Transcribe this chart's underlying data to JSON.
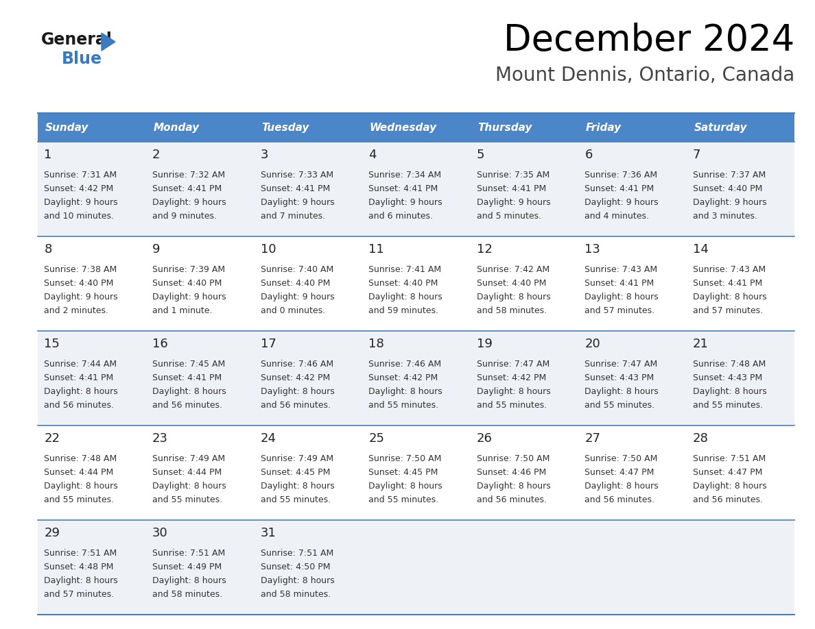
{
  "title": "December 2024",
  "subtitle": "Mount Dennis, Ontario, Canada",
  "days_of_week": [
    "Sunday",
    "Monday",
    "Tuesday",
    "Wednesday",
    "Thursday",
    "Friday",
    "Saturday"
  ],
  "header_bg": "#4a86c8",
  "header_text": "#ffffff",
  "row_bg_light": "#eef2f7",
  "row_bg_white": "#ffffff",
  "border_color": "#4a7fb5",
  "day_num_color": "#222222",
  "cell_text_color": "#333333",
  "calendar_data": [
    [
      {
        "day": 1,
        "sunrise": "7:31 AM",
        "sunset": "4:42 PM",
        "daylight_h": "9 hours",
        "daylight_m": "and 10 minutes."
      },
      {
        "day": 2,
        "sunrise": "7:32 AM",
        "sunset": "4:41 PM",
        "daylight_h": "9 hours",
        "daylight_m": "and 9 minutes."
      },
      {
        "day": 3,
        "sunrise": "7:33 AM",
        "sunset": "4:41 PM",
        "daylight_h": "9 hours",
        "daylight_m": "and 7 minutes."
      },
      {
        "day": 4,
        "sunrise": "7:34 AM",
        "sunset": "4:41 PM",
        "daylight_h": "9 hours",
        "daylight_m": "and 6 minutes."
      },
      {
        "day": 5,
        "sunrise": "7:35 AM",
        "sunset": "4:41 PM",
        "daylight_h": "9 hours",
        "daylight_m": "and 5 minutes."
      },
      {
        "day": 6,
        "sunrise": "7:36 AM",
        "sunset": "4:41 PM",
        "daylight_h": "9 hours",
        "daylight_m": "and 4 minutes."
      },
      {
        "day": 7,
        "sunrise": "7:37 AM",
        "sunset": "4:40 PM",
        "daylight_h": "9 hours",
        "daylight_m": "and 3 minutes."
      }
    ],
    [
      {
        "day": 8,
        "sunrise": "7:38 AM",
        "sunset": "4:40 PM",
        "daylight_h": "9 hours",
        "daylight_m": "and 2 minutes."
      },
      {
        "day": 9,
        "sunrise": "7:39 AM",
        "sunset": "4:40 PM",
        "daylight_h": "9 hours",
        "daylight_m": "and 1 minute."
      },
      {
        "day": 10,
        "sunrise": "7:40 AM",
        "sunset": "4:40 PM",
        "daylight_h": "9 hours",
        "daylight_m": "and 0 minutes."
      },
      {
        "day": 11,
        "sunrise": "7:41 AM",
        "sunset": "4:40 PM",
        "daylight_h": "8 hours",
        "daylight_m": "and 59 minutes."
      },
      {
        "day": 12,
        "sunrise": "7:42 AM",
        "sunset": "4:40 PM",
        "daylight_h": "8 hours",
        "daylight_m": "and 58 minutes."
      },
      {
        "day": 13,
        "sunrise": "7:43 AM",
        "sunset": "4:41 PM",
        "daylight_h": "8 hours",
        "daylight_m": "and 57 minutes."
      },
      {
        "day": 14,
        "sunrise": "7:43 AM",
        "sunset": "4:41 PM",
        "daylight_h": "8 hours",
        "daylight_m": "and 57 minutes."
      }
    ],
    [
      {
        "day": 15,
        "sunrise": "7:44 AM",
        "sunset": "4:41 PM",
        "daylight_h": "8 hours",
        "daylight_m": "and 56 minutes."
      },
      {
        "day": 16,
        "sunrise": "7:45 AM",
        "sunset": "4:41 PM",
        "daylight_h": "8 hours",
        "daylight_m": "and 56 minutes."
      },
      {
        "day": 17,
        "sunrise": "7:46 AM",
        "sunset": "4:42 PM",
        "daylight_h": "8 hours",
        "daylight_m": "and 56 minutes."
      },
      {
        "day": 18,
        "sunrise": "7:46 AM",
        "sunset": "4:42 PM",
        "daylight_h": "8 hours",
        "daylight_m": "and 55 minutes."
      },
      {
        "day": 19,
        "sunrise": "7:47 AM",
        "sunset": "4:42 PM",
        "daylight_h": "8 hours",
        "daylight_m": "and 55 minutes."
      },
      {
        "day": 20,
        "sunrise": "7:47 AM",
        "sunset": "4:43 PM",
        "daylight_h": "8 hours",
        "daylight_m": "and 55 minutes."
      },
      {
        "day": 21,
        "sunrise": "7:48 AM",
        "sunset": "4:43 PM",
        "daylight_h": "8 hours",
        "daylight_m": "and 55 minutes."
      }
    ],
    [
      {
        "day": 22,
        "sunrise": "7:48 AM",
        "sunset": "4:44 PM",
        "daylight_h": "8 hours",
        "daylight_m": "and 55 minutes."
      },
      {
        "day": 23,
        "sunrise": "7:49 AM",
        "sunset": "4:44 PM",
        "daylight_h": "8 hours",
        "daylight_m": "and 55 minutes."
      },
      {
        "day": 24,
        "sunrise": "7:49 AM",
        "sunset": "4:45 PM",
        "daylight_h": "8 hours",
        "daylight_m": "and 55 minutes."
      },
      {
        "day": 25,
        "sunrise": "7:50 AM",
        "sunset": "4:45 PM",
        "daylight_h": "8 hours",
        "daylight_m": "and 55 minutes."
      },
      {
        "day": 26,
        "sunrise": "7:50 AM",
        "sunset": "4:46 PM",
        "daylight_h": "8 hours",
        "daylight_m": "and 56 minutes."
      },
      {
        "day": 27,
        "sunrise": "7:50 AM",
        "sunset": "4:47 PM",
        "daylight_h": "8 hours",
        "daylight_m": "and 56 minutes."
      },
      {
        "day": 28,
        "sunrise": "7:51 AM",
        "sunset": "4:47 PM",
        "daylight_h": "8 hours",
        "daylight_m": "and 56 minutes."
      }
    ],
    [
      {
        "day": 29,
        "sunrise": "7:51 AM",
        "sunset": "4:48 PM",
        "daylight_h": "8 hours",
        "daylight_m": "and 57 minutes."
      },
      {
        "day": 30,
        "sunrise": "7:51 AM",
        "sunset": "4:49 PM",
        "daylight_h": "8 hours",
        "daylight_m": "and 58 minutes."
      },
      {
        "day": 31,
        "sunrise": "7:51 AM",
        "sunset": "4:50 PM",
        "daylight_h": "8 hours",
        "daylight_m": "and 58 minutes."
      },
      null,
      null,
      null,
      null
    ]
  ],
  "logo_general_color": "#1a1a1a",
  "logo_blue_color": "#3a7abf",
  "logo_triangle_color": "#3a7abf",
  "title_fontsize": 38,
  "subtitle_fontsize": 20,
  "header_fontsize": 11,
  "day_num_fontsize": 13,
  "cell_fontsize": 9
}
